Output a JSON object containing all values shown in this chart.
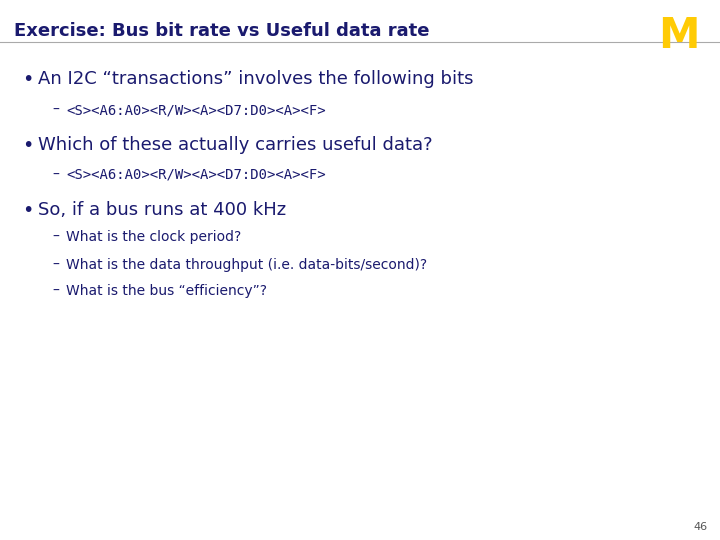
{
  "title": "Exercise: Bus bit rate vs Useful data rate",
  "title_color": "#1a1a6e",
  "title_fontsize": 13,
  "background_color": "#ffffff",
  "slide_number": "46",
  "michigan_M_color": "#FFCB05",
  "bullet_color": "#1a1a6e",
  "text_color": "#1a1a6e",
  "content": [
    {
      "type": "bullet",
      "level": 1,
      "text": "An I2C “transactions” involves the following bits",
      "fontsize": 13,
      "family": "sans"
    },
    {
      "type": "bullet",
      "level": 2,
      "text": "<S><A6:A0><R/W><A><D7:D0><A><F>",
      "fontsize": 10,
      "family": "monospace"
    },
    {
      "type": "bullet",
      "level": 1,
      "text": "Which of these actually carries useful data?",
      "fontsize": 13,
      "family": "sans"
    },
    {
      "type": "bullet",
      "level": 2,
      "text": "<S><A6:A0><R/W><A><D7:D0><A><F>",
      "fontsize": 10,
      "family": "monospace"
    },
    {
      "type": "bullet",
      "level": 1,
      "text": "So, if a bus runs at 400 kHz",
      "fontsize": 13,
      "family": "sans"
    },
    {
      "type": "bullet",
      "level": 2,
      "text": "What is the clock period?",
      "fontsize": 10,
      "family": "sans"
    },
    {
      "type": "bullet",
      "level": 2,
      "text": "What is the data throughput (i.e. data-bits/second)?",
      "fontsize": 10,
      "family": "sans"
    },
    {
      "type": "bullet",
      "level": 2,
      "text": "What is the bus “efficiency”?",
      "fontsize": 10,
      "family": "sans"
    }
  ]
}
